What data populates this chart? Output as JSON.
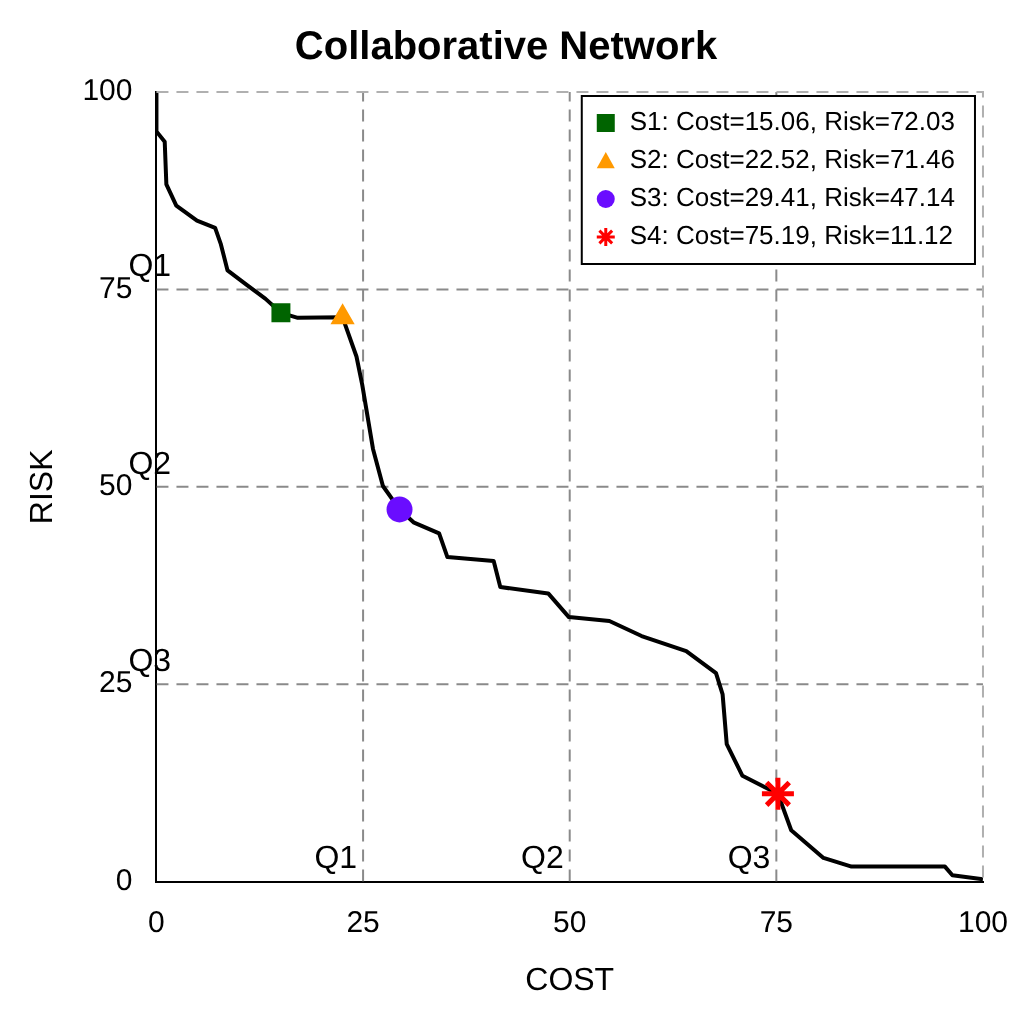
{
  "chart_data": {
    "type": "line",
    "title": "Collaborative Network",
    "xlabel": "COST",
    "ylabel": "RISK",
    "xlim": [
      0,
      100
    ],
    "ylim": [
      0,
      100
    ],
    "xticks": [
      0,
      25,
      50,
      75,
      100
    ],
    "yticks": [
      0,
      25,
      50,
      75,
      100
    ],
    "legend": "top right",
    "ref_lines": [
      {
        "axis": "x",
        "value": 25,
        "label": "Q1"
      },
      {
        "axis": "x",
        "value": 50,
        "label": "Q2"
      },
      {
        "axis": "x",
        "value": 75,
        "label": "Q3"
      },
      {
        "axis": "y",
        "value": 75,
        "label": "Q1"
      },
      {
        "axis": "y",
        "value": 50,
        "label": "Q2"
      },
      {
        "axis": "y",
        "value": 25,
        "label": "Q3"
      }
    ],
    "series": [
      {
        "type": "line",
        "color": "#000000",
        "marker": "none",
        "x": [
          0,
          0,
          1,
          1.2,
          2.4,
          4.9,
          7.1,
          7.8,
          8.6,
          11,
          13.2,
          15.06,
          17.1,
          22.52,
          24.2,
          24.9,
          26.2,
          27.4,
          29.41,
          31.1,
          34.2,
          35.2,
          40.8,
          41.6,
          47.4,
          49.9,
          54.8,
          58.7,
          64.1,
          67.7,
          68.5,
          69,
          70.9,
          75.19,
          76.8,
          80.7,
          84.1,
          95.4,
          96.3,
          100
        ],
        "values": [
          100,
          95,
          93.7,
          88.3,
          85.6,
          83.7,
          82.8,
          80.7,
          77.4,
          75.5,
          73.8,
          72.03,
          71.4,
          71.46,
          66.5,
          62.9,
          54.8,
          50.1,
          47.14,
          45.5,
          44.1,
          41.1,
          40.6,
          37.3,
          36.5,
          33.5,
          33,
          31.1,
          29.2,
          26.4,
          23.7,
          17.4,
          13.4,
          11.12,
          6.5,
          3,
          1.9,
          1.9,
          0.8,
          0.3
        ]
      },
      {
        "type": "scatter",
        "name": "S1: Cost=15.06, Risk=72.03",
        "color": "#006400",
        "marker": "square",
        "x": [
          15.06
        ],
        "values": [
          72.03
        ]
      },
      {
        "type": "scatter",
        "name": "S2: Cost=22.52, Risk=71.46",
        "color": "#ff9900",
        "marker": "triangle",
        "x": [
          22.52
        ],
        "values": [
          71.46
        ]
      },
      {
        "type": "scatter",
        "name": "S3: Cost=29.41, Risk=47.14",
        "color": "#6a0dff",
        "marker": "circle",
        "x": [
          29.41
        ],
        "values": [
          47.14
        ]
      },
      {
        "type": "scatter",
        "name": "S4: Cost=75.19, Risk=11.12",
        "color": "#ff0000",
        "marker": "cross",
        "x": [
          75.19
        ],
        "values": [
          11.12
        ]
      }
    ]
  }
}
